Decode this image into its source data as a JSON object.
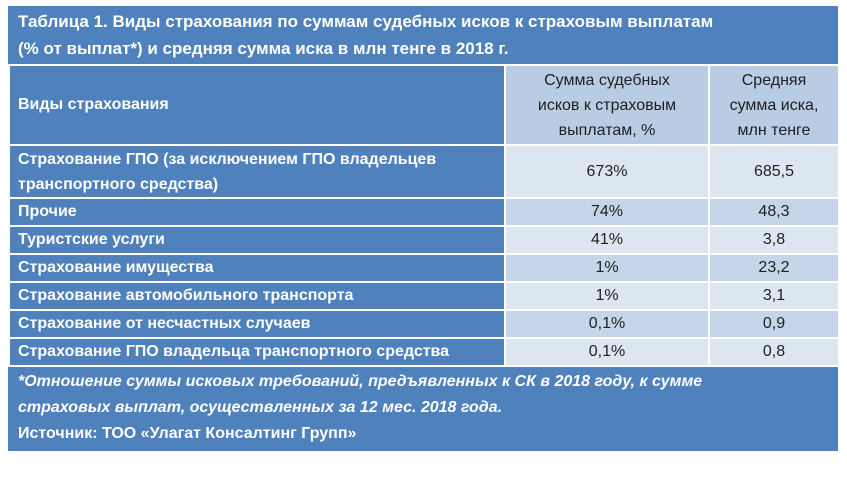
{
  "title_line1": "Таблица 1. Виды страхования по суммам судебных исков к страховым выплатам",
  "title_line2": "(% от выплат*) и средняя сумма иска в млн тенге в 2018 г.",
  "header": {
    "col1": "Виды страхования",
    "col2_line1": "Сумма судебных",
    "col2_line2": "исков к страховым",
    "col2_line3": "выплатам, %",
    "col3_line1": "Средняя",
    "col3_line2": "сумма иска,",
    "col3_line3": "млн тенге"
  },
  "rows": [
    {
      "name_line1": "Страхование ГПО (за исключением ГПО владельцев",
      "name_line2": "транспортного средства)",
      "pct": "673%",
      "avg": "685,5"
    },
    {
      "name": "Прочие",
      "pct": "74%",
      "avg": "48,3"
    },
    {
      "name": "Туристские услуги",
      "pct": "41%",
      "avg": "3,8"
    },
    {
      "name": "Страхование имущества",
      "pct": "1%",
      "avg": "23,2"
    },
    {
      "name": "Страхование автомобильного транспорта",
      "pct": "1%",
      "avg": "3,1"
    },
    {
      "name": "Страхование от несчастных случаев",
      "pct": "0,1%",
      "avg": "0,9"
    },
    {
      "name": "Страхование ГПО владельца транспортного средства",
      "pct": "0,1%",
      "avg": "0,8"
    }
  ],
  "footnote_line1": "*Отношение суммы исковых требований, предъявленных к СК в 2018 году, к сумме",
  "footnote_line2": "страховых выплат, осуществленных за 12 мес. 2018 года.",
  "source": "Источник: ТОО «Улагат Консалтинг Групп»",
  "colors": {
    "header_blue": "#4f81bd",
    "light_blue": "#dce6f1",
    "mid_blue": "#c5d5ea",
    "header_cell": "#b8cce4"
  }
}
